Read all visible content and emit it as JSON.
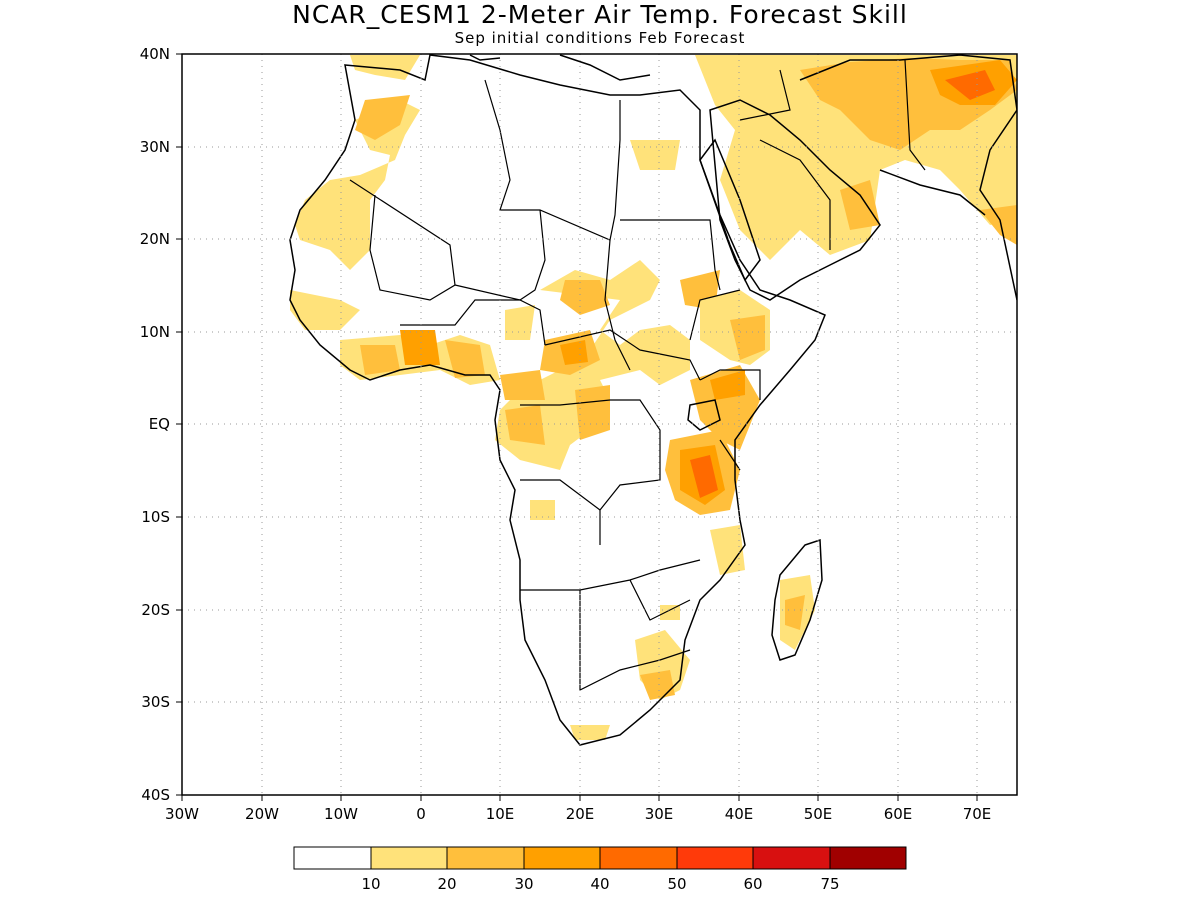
{
  "title": "NCAR_CESM1 2-Meter Air Temp. Forecast Skill",
  "subtitle": "Sep initial conditions  Feb Forecast",
  "map": {
    "lat_ticks": [
      "40N",
      "30N",
      "20N",
      "10N",
      "EQ",
      "10S",
      "20S",
      "30S",
      "40S"
    ],
    "lat_values": [
      40,
      30,
      20,
      10,
      0,
      -10,
      -20,
      -30,
      -40
    ],
    "lon_ticks": [
      "30W",
      "20W",
      "10W",
      "0",
      "10E",
      "20E",
      "30E",
      "40E",
      "50E",
      "60E",
      "70E"
    ],
    "lon_values": [
      -30,
      -20,
      -10,
      0,
      10,
      20,
      30,
      40,
      50,
      60,
      70
    ],
    "extent": {
      "lon_min": -30,
      "lon_max": 75,
      "lat_min": -40,
      "lat_max": 40
    },
    "grid": "dotted"
  },
  "legend": {
    "labels": [
      "10",
      "20",
      "30",
      "40",
      "50",
      "60",
      "75"
    ],
    "colors": [
      "#ffffff",
      "#ffe27a",
      "#ffbf3c",
      "#ffa000",
      "#ff6a00",
      "#ff3a0a",
      "#d81010",
      "#a00000"
    ]
  }
}
